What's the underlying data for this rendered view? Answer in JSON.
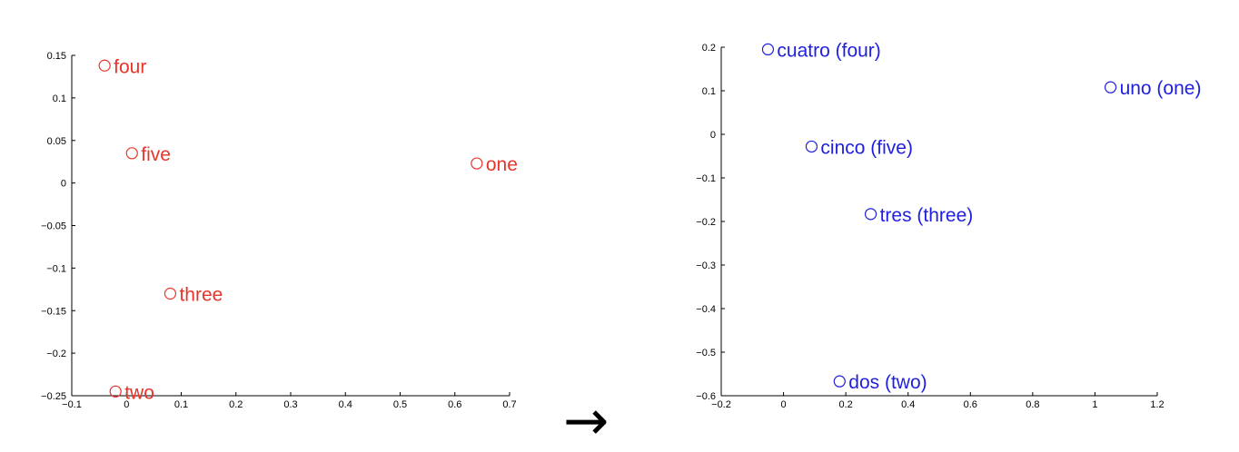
{
  "arrow": "→",
  "chart_data": [
    {
      "type": "scatter",
      "title": "",
      "xlabel": "",
      "ylabel": "",
      "xlim": [
        -0.1,
        0.7
      ],
      "ylim": [
        -0.25,
        0.15
      ],
      "xticks": [
        "−0.1",
        "0",
        "0.1",
        "0.2",
        "0.3",
        "0.4",
        "0.5",
        "0.6",
        "0.7"
      ],
      "yticks": [
        "−0.25",
        "−0.2",
        "−0.15",
        "−0.1",
        "−0.05",
        "0",
        "0.05",
        "0.1",
        "0.15"
      ],
      "grid": false,
      "color": "#e8352b",
      "points": [
        {
          "label": "four",
          "x": -0.04,
          "y": 0.138
        },
        {
          "label": "five",
          "x": 0.01,
          "y": 0.035
        },
        {
          "label": "one",
          "x": 0.64,
          "y": 0.023
        },
        {
          "label": "three",
          "x": 0.08,
          "y": -0.13
        },
        {
          "label": "two",
          "x": -0.02,
          "y": -0.245
        }
      ]
    },
    {
      "type": "scatter",
      "title": "",
      "xlabel": "",
      "ylabel": "",
      "xlim": [
        -0.2,
        1.2
      ],
      "ylim": [
        -0.6,
        0.2
      ],
      "xticks": [
        "−0.2",
        "0",
        "0.2",
        "0.4",
        "0.6",
        "0.8",
        "1",
        "1.2"
      ],
      "yticks": [
        "−0.6",
        "−0.5",
        "−0.4",
        "−0.3",
        "−0.2",
        "−0.1",
        "0",
        "0.1",
        "0.2"
      ],
      "grid": false,
      "color": "#1f1fe0",
      "points": [
        {
          "label": "cuatro (four)",
          "x": -0.05,
          "y": 0.195
        },
        {
          "label": "uno (one)",
          "x": 1.05,
          "y": 0.108
        },
        {
          "label": "cinco (five)",
          "x": 0.09,
          "y": -0.028
        },
        {
          "label": "tres (three)",
          "x": 0.28,
          "y": -0.183
        },
        {
          "label": "dos (two)",
          "x": 0.18,
          "y": -0.567
        }
      ]
    }
  ]
}
